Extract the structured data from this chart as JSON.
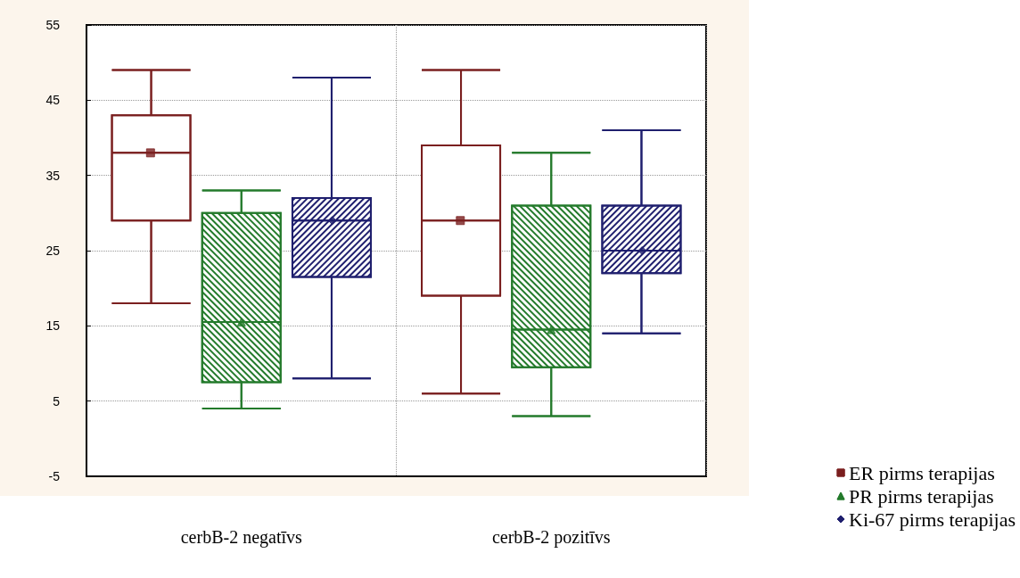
{
  "chart_data": {
    "type": "box",
    "categories": [
      "cerbB-2 negatīvs",
      "cerbB-2 pozitīvs"
    ],
    "ylim": [
      -5,
      55
    ],
    "yticks": [
      -5,
      5,
      15,
      25,
      35,
      45,
      55
    ],
    "grid": true,
    "legend": "bottom right",
    "series": [
      {
        "name": "ER pirms terapijas",
        "color": "#7a1f1f",
        "marker": "square",
        "boxes": [
          {
            "low": 18,
            "q1": 29,
            "median": 38,
            "q3": 43,
            "high": 49,
            "mean": 38
          },
          {
            "low": 6,
            "q1": 19,
            "median": 29,
            "q3": 39,
            "high": 49,
            "mean": 29
          }
        ]
      },
      {
        "name": "PR pirms terapijas",
        "color": "#237a2b",
        "marker": "triangle",
        "boxes": [
          {
            "low": 4,
            "q1": 7.5,
            "median": 15.5,
            "q3": 30,
            "high": 33,
            "mean": 15.5
          },
          {
            "low": 3,
            "q1": 9.5,
            "median": 14.5,
            "q3": 31,
            "high": 38,
            "mean": 14.5
          }
        ]
      },
      {
        "name": "Ki-67 pirms terapijas",
        "color": "#1f1f6e",
        "marker": "diamond",
        "boxes": [
          {
            "low": 8,
            "q1": 21.5,
            "median": 29,
            "q3": 32,
            "high": 48,
            "mean": 29
          },
          {
            "low": 14,
            "q1": 22,
            "median": 25,
            "q3": 31,
            "high": 41,
            "mean": 25
          }
        ]
      }
    ]
  }
}
